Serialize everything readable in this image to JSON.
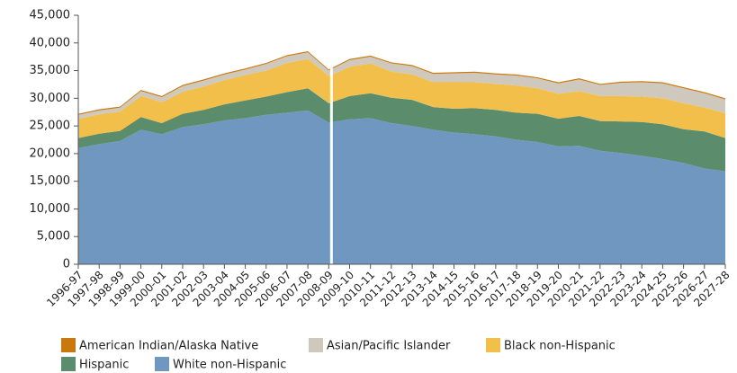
{
  "chart_data": {
    "type": "stacked_area",
    "categories": [
      "1996-97",
      "1997-98",
      "1998-99",
      "1999-00",
      "2000-01",
      "2001-02",
      "2002-03",
      "2003-04",
      "2004-05",
      "2005-06",
      "2006-07",
      "2007-08",
      "2008-09",
      "2009-10",
      "2010-11",
      "2011-12",
      "2012-13",
      "2013-14",
      "2014-15",
      "2015-16",
      "2016-17",
      "2017-18",
      "2018-19",
      "2019-20",
      "2020-21",
      "2021-22",
      "2022-23",
      "2023-24",
      "2024-25",
      "2025-26",
      "2026-27",
      "2027-28"
    ],
    "series": [
      {
        "name": "American Indian/Alaska Native",
        "color": "#c9780d",
        "values": [
          200,
          200,
          200,
          200,
          200,
          200,
          200,
          200,
          200,
          200,
          200,
          200,
          200,
          200,
          200,
          200,
          200,
          200,
          200,
          200,
          200,
          200,
          200,
          200,
          200,
          200,
          200,
          200,
          200,
          200,
          200,
          200
        ]
      },
      {
        "name": "Asian/Pacific Islander",
        "color": "#cfc8bd",
        "values": [
          700,
          700,
          700,
          900,
          900,
          1000,
          1100,
          1000,
          1000,
          1200,
          1200,
          1200,
          1000,
          1200,
          1200,
          1500,
          1500,
          1500,
          1600,
          1700,
          1700,
          1800,
          1800,
          1900,
          2100,
          2000,
          2400,
          2600,
          2700,
          2700,
          2600,
          2500
        ]
      },
      {
        "name": "Black non-Hispanic",
        "color": "#f2bf4a",
        "values": [
          3500,
          3500,
          3500,
          3800,
          3800,
          4000,
          4200,
          4400,
          4600,
          4700,
          5300,
          5300,
          4900,
          5300,
          5400,
          4700,
          4600,
          4500,
          4800,
          4700,
          4700,
          4900,
          4600,
          4500,
          4500,
          4500,
          4600,
          4600,
          4700,
          4700,
          4300,
          4500
        ]
      },
      {
        "name": "Hispanic",
        "color": "#5b8c6b",
        "values": [
          1800,
          1900,
          1800,
          2300,
          2000,
          2400,
          2600,
          2900,
          3200,
          3300,
          3700,
          4000,
          3500,
          4200,
          4500,
          4600,
          4700,
          4100,
          4300,
          4700,
          4800,
          4900,
          5100,
          5000,
          5400,
          5400,
          5700,
          6100,
          6300,
          6100,
          6700,
          6000
        ]
      },
      {
        "name": "White non-Hispanic",
        "color": "#7097c0",
        "values": [
          21000,
          21700,
          22300,
          24300,
          23500,
          24800,
          25300,
          26000,
          26400,
          27000,
          27400,
          27800,
          25600,
          26200,
          26400,
          25500,
          25000,
          24300,
          23800,
          23500,
          23100,
          22500,
          22100,
          21300,
          21400,
          20500,
          20100,
          19600,
          19000,
          18300,
          17300,
          16800
        ]
      }
    ],
    "ylim": [
      0,
      45000
    ],
    "yticks": [
      0,
      {
        "value": 5000,
        "label": "5,000"
      },
      {
        "value": 10000,
        "label": "10,000"
      },
      {
        "value": 15000,
        "label": "15,000"
      },
      {
        "value": 20000,
        "label": "20,000"
      },
      {
        "value": 25000,
        "label": "25,000"
      },
      {
        "value": 30000,
        "label": "30,000"
      },
      {
        "value": 35000,
        "label": "35,000"
      },
      {
        "value": 40000,
        "label": "40,000"
      },
      {
        "value": 45000,
        "label": "45,000"
      }
    ]
  }
}
